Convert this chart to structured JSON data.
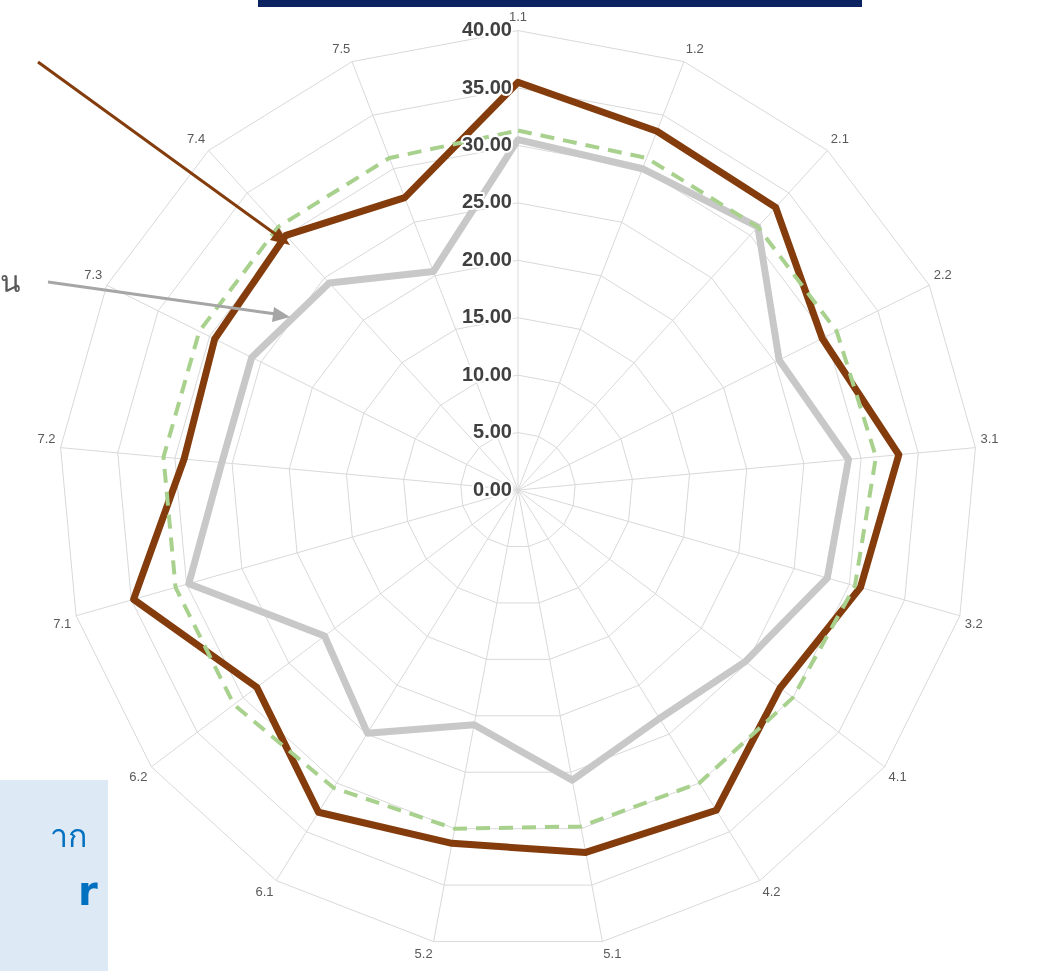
{
  "chart_data": {
    "type": "radar",
    "categories": [
      "1.1",
      "1.2",
      "2.1",
      "2.2",
      "3.1",
      "3.2",
      "4.1",
      "4.2",
      "5.1",
      "5.2",
      "6.1",
      "6.2",
      "7.1",
      "7.2",
      "7.3",
      "7.4",
      "7.5"
    ],
    "series": [
      {
        "color": "#a9d18e",
        "line_style": "dashed",
        "values": [
          31.3,
          31.0,
          31.0,
          31.0,
          31.3,
          30.5,
          30.0,
          30.0,
          29.8,
          30.0,
          30.5,
          31.0,
          31.0,
          31.0,
          31.0,
          31.0,
          31.0
        ]
      },
      {
        "color": "#c8c8c8",
        "values": [
          30.5,
          30.0,
          31.0,
          25.4,
          28.9,
          28.0,
          24.8,
          23.4,
          25.7,
          20.8,
          24.9,
          21.1,
          29.8,
          25.9,
          25.9,
          24.4,
          20.4
        ]
      },
      {
        "color": "#843c0c",
        "values": [
          35.5,
          33.5,
          33.3,
          29.6,
          33.3,
          31.0,
          28.6,
          32.8,
          32.1,
          31.3,
          33.0,
          28.5,
          34.8,
          29.2,
          29.5,
          30.0,
          27.3
        ]
      }
    ],
    "ylim": [
      0,
      40
    ],
    "yticks": [
      {
        "value": 0,
        "label": "0.00"
      },
      {
        "value": 5,
        "label": "5.00"
      },
      {
        "value": 10,
        "label": "10.00"
      },
      {
        "value": 15,
        "label": "15.00"
      },
      {
        "value": 20,
        "label": "20.00"
      },
      {
        "value": 25,
        "label": "25.00"
      },
      {
        "value": 30,
        "label": "30.00"
      },
      {
        "value": 35,
        "label": "35.00"
      },
      {
        "value": 40,
        "label": "40.00"
      }
    ],
    "grid": true,
    "legend": false,
    "marker": "none",
    "line_style": "solid",
    "annotations": [
      "น",
      "าก",
      "r"
    ]
  }
}
